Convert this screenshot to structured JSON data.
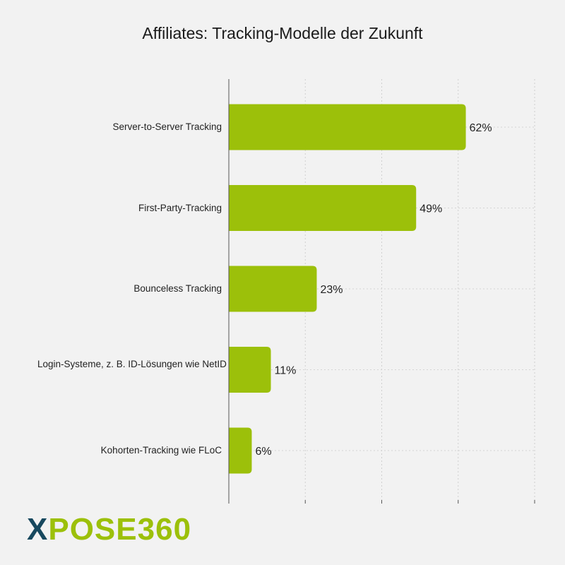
{
  "chart_data": {
    "type": "bar",
    "orientation": "horizontal",
    "title": "Affiliates: Tracking-Modelle der Zukunft",
    "categories": [
      "Server-to-Server Tracking",
      "First-Party-Tracking",
      "Bounceless Tracking",
      "Login-Systeme, z. B. ID-Lösungen wie NetID",
      "Kohorten-Tracking wie FLoC"
    ],
    "values": [
      62,
      49,
      23,
      11,
      6
    ],
    "value_labels": [
      "62%",
      "49%",
      "23%",
      "11%",
      "6%"
    ],
    "xlim": [
      0,
      80
    ],
    "grid": true,
    "bar_color": "#9cc00a"
  },
  "logo": {
    "first_letter": "X",
    "rest": "POSE360",
    "colors": {
      "first": "#17485e",
      "rest": "#9cc00a"
    }
  }
}
